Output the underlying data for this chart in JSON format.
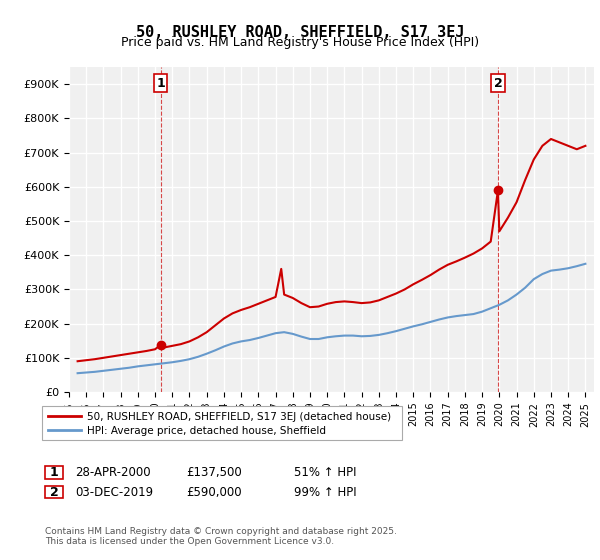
{
  "title": "50, RUSHLEY ROAD, SHEFFIELD, S17 3EJ",
  "subtitle": "Price paid vs. HM Land Registry's House Price Index (HPI)",
  "ylim": [
    0,
    950000
  ],
  "yticks": [
    0,
    100000,
    200000,
    300000,
    400000,
    500000,
    600000,
    700000,
    800000,
    900000
  ],
  "ytick_labels": [
    "£0",
    "£100K",
    "£200K",
    "£300K",
    "£400K",
    "£500K",
    "£600K",
    "£700K",
    "£800K",
    "£900K"
  ],
  "xlim_start": 1995.5,
  "xlim_end": 2025.5,
  "xticks": [
    1995,
    1996,
    1997,
    1998,
    1999,
    2000,
    2001,
    2002,
    2003,
    2004,
    2005,
    2006,
    2007,
    2008,
    2009,
    2010,
    2011,
    2012,
    2013,
    2014,
    2015,
    2016,
    2017,
    2018,
    2019,
    2020,
    2021,
    2022,
    2023,
    2024,
    2025
  ],
  "sale1_x": 2000.32,
  "sale1_y": 137500,
  "sale1_label": "1",
  "sale2_x": 2019.92,
  "sale2_y": 590000,
  "sale2_label": "2",
  "house_color": "#cc0000",
  "hpi_color": "#6699cc",
  "background_color": "#f0f0f0",
  "grid_color": "#ffffff",
  "legend_entries": [
    "50, RUSHLEY ROAD, SHEFFIELD, S17 3EJ (detached house)",
    "HPI: Average price, detached house, Sheffield"
  ],
  "annotation1_date": "28-APR-2000",
  "annotation1_price": "£137,500",
  "annotation1_hpi": "51% ↑ HPI",
  "annotation2_date": "03-DEC-2019",
  "annotation2_price": "£590,000",
  "annotation2_hpi": "99% ↑ HPI",
  "footer": "Contains HM Land Registry data © Crown copyright and database right 2025.\nThis data is licensed under the Open Government Licence v3.0.",
  "hpi_data_x": [
    1995.5,
    1996.0,
    1996.5,
    1997.0,
    1997.5,
    1998.0,
    1998.5,
    1999.0,
    1999.5,
    2000.0,
    2000.5,
    2001.0,
    2001.5,
    2002.0,
    2002.5,
    2003.0,
    2003.5,
    2004.0,
    2004.5,
    2005.0,
    2005.5,
    2006.0,
    2006.5,
    2007.0,
    2007.5,
    2008.0,
    2008.5,
    2009.0,
    2009.5,
    2010.0,
    2010.5,
    2011.0,
    2011.5,
    2012.0,
    2012.5,
    2013.0,
    2013.5,
    2014.0,
    2014.5,
    2015.0,
    2015.5,
    2016.0,
    2016.5,
    2017.0,
    2017.5,
    2018.0,
    2018.5,
    2019.0,
    2019.5,
    2020.0,
    2020.5,
    2021.0,
    2021.5,
    2022.0,
    2022.5,
    2023.0,
    2023.5,
    2024.0,
    2024.5,
    2025.0
  ],
  "hpi_data_y": [
    55000,
    57000,
    59000,
    62000,
    65000,
    68000,
    71000,
    75000,
    78000,
    81000,
    84000,
    87000,
    91000,
    96000,
    103000,
    112000,
    122000,
    133000,
    142000,
    148000,
    152000,
    158000,
    165000,
    172000,
    175000,
    170000,
    162000,
    155000,
    155000,
    160000,
    163000,
    165000,
    165000,
    163000,
    164000,
    167000,
    172000,
    178000,
    185000,
    192000,
    198000,
    205000,
    212000,
    218000,
    222000,
    225000,
    228000,
    235000,
    245000,
    255000,
    268000,
    285000,
    305000,
    330000,
    345000,
    355000,
    358000,
    362000,
    368000,
    375000
  ],
  "house_data_x": [
    1995.5,
    1996.0,
    1996.5,
    1997.0,
    1997.5,
    1998.0,
    1998.5,
    1999.0,
    1999.5,
    2000.0,
    2000.32,
    2000.5,
    2001.0,
    2001.5,
    2002.0,
    2002.5,
    2003.0,
    2003.5,
    2004.0,
    2004.5,
    2005.0,
    2005.5,
    2006.0,
    2006.5,
    2007.0,
    2007.33,
    2007.5,
    2008.0,
    2008.5,
    2009.0,
    2009.5,
    2010.0,
    2010.5,
    2011.0,
    2011.5,
    2012.0,
    2012.5,
    2013.0,
    2013.5,
    2014.0,
    2014.5,
    2015.0,
    2015.5,
    2016.0,
    2016.5,
    2017.0,
    2017.5,
    2018.0,
    2018.5,
    2019.0,
    2019.5,
    2019.92,
    2020.0,
    2020.5,
    2021.0,
    2021.5,
    2022.0,
    2022.5,
    2023.0,
    2023.5,
    2024.0,
    2024.5,
    2025.0
  ],
  "house_data_y": [
    90000,
    93000,
    96000,
    100000,
    104000,
    108000,
    112000,
    116000,
    120000,
    125000,
    137500,
    130000,
    135000,
    140000,
    148000,
    160000,
    175000,
    195000,
    215000,
    230000,
    240000,
    248000,
    258000,
    268000,
    278000,
    360000,
    285000,
    275000,
    260000,
    248000,
    250000,
    258000,
    263000,
    265000,
    263000,
    260000,
    262000,
    268000,
    278000,
    288000,
    300000,
    315000,
    328000,
    342000,
    358000,
    372000,
    382000,
    393000,
    405000,
    420000,
    440000,
    590000,
    470000,
    510000,
    555000,
    620000,
    680000,
    720000,
    740000,
    730000,
    720000,
    710000,
    720000
  ]
}
